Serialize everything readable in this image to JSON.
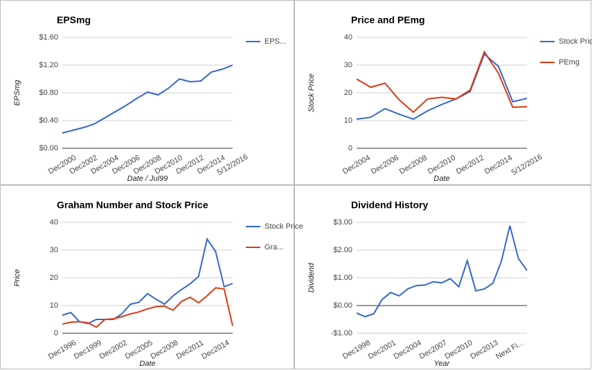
{
  "chart_data": [
    {
      "type": "line",
      "title": "EPSmg",
      "x_label": "Date / Jul99",
      "y_label": "EPSmg",
      "categories": [
        "Dec2000",
        null,
        "Dec2002",
        null,
        "Dec2004",
        null,
        "Dec2006",
        null,
        "Dec2008",
        null,
        "Dec2010",
        null,
        "Dec2012",
        null,
        "Dec2014",
        null,
        "5/12/2016"
      ],
      "series": [
        {
          "name": "EPS...",
          "color": "#3366cc",
          "values": [
            0.22,
            0.26,
            0.3,
            0.35,
            0.44,
            0.53,
            0.62,
            0.72,
            0.81,
            0.77,
            0.87,
            1.0,
            0.96,
            0.97,
            1.1,
            1.14,
            1.2
          ]
        }
      ],
      "ylim": [
        0,
        1.6
      ],
      "yticks": [
        {
          "value": 0,
          "label": "$0.00"
        },
        {
          "value": 0.4,
          "label": "$0.40"
        },
        {
          "value": 0.8,
          "label": "$0.80"
        },
        {
          "value": 1.2,
          "label": "$1.20"
        },
        {
          "value": 1.6,
          "label": "$1.60"
        }
      ],
      "grid": true,
      "legend": "right"
    },
    {
      "type": "line",
      "title": "Price and PEmg",
      "x_label": "Date",
      "y_label": "Stock Price",
      "categories": [
        "Dec2004",
        null,
        "Dec2006",
        null,
        "Dec2008",
        null,
        "Dec2010",
        null,
        "Dec2012",
        null,
        "Dec2014",
        null,
        "5/12/2016"
      ],
      "series": [
        {
          "name": "Stock Price",
          "color": "#3366cc",
          "values": [
            10.5,
            11.2,
            14.3,
            12.3,
            10.5,
            13.5,
            15.8,
            17.8,
            20.5,
            34,
            29.5,
            16.8,
            18
          ]
        },
        {
          "name": "PEmg",
          "color": "#dc3912",
          "values": [
            25,
            22,
            23.5,
            17.5,
            13,
            17.8,
            18.4,
            17.8,
            21,
            34.8,
            27,
            14.8,
            15
          ]
        }
      ],
      "ylim": [
        0,
        40
      ],
      "yticks": [
        0,
        10,
        20,
        30,
        40
      ],
      "grid": true,
      "legend": "right"
    },
    {
      "type": "line",
      "title": "Graham Number and Stock Price",
      "x_label": "Date",
      "y_label": "Price",
      "categories": [
        "Dec1996",
        null,
        null,
        "Dec1999",
        null,
        null,
        "Dec2002",
        null,
        null,
        "Dec2005",
        null,
        null,
        "Dec2008",
        null,
        null,
        "Dec2011",
        null,
        null,
        "Dec2014",
        null,
        null
      ],
      "series": [
        {
          "name": "Stock Price",
          "color": "#3366cc",
          "values": [
            6.5,
            7.5,
            4.2,
            3.5,
            5,
            5,
            5,
            7,
            10.5,
            11.2,
            14.3,
            12.3,
            10.5,
            13.5,
            15.8,
            17.8,
            20.5,
            34,
            29.5,
            16.8,
            18
          ]
        },
        {
          "name": "Gra...",
          "color": "#dc3912",
          "values": [
            3.3,
            4,
            4.2,
            3.8,
            2.2,
            5,
            5.2,
            6,
            7,
            7.7,
            8.8,
            9.6,
            9.8,
            8.3,
            11.5,
            13,
            11,
            13.5,
            16.4,
            16,
            2.7
          ]
        }
      ],
      "ylim": [
        0,
        40
      ],
      "yticks": [
        0,
        10,
        20,
        30,
        40
      ],
      "grid": true,
      "legend": "right"
    },
    {
      "type": "line",
      "title": "Dividend History",
      "x_label": "Year",
      "y_label": "Dividend",
      "categories": [
        "Dec1998",
        null,
        null,
        "Dec2001",
        null,
        null,
        "Dec2004",
        null,
        null,
        "Dec2007",
        null,
        null,
        "Dec2010",
        null,
        null,
        "Dec2013",
        null,
        null,
        "Next Fi...",
        null,
        null
      ],
      "series": [
        {
          "name": "Dividend",
          "color": "#3366cc",
          "values": [
            -0.27,
            -0.4,
            -0.3,
            0.22,
            0.47,
            0.35,
            0.6,
            0.72,
            0.74,
            0.86,
            0.82,
            0.97,
            0.68,
            1.62,
            0.53,
            0.6,
            0.8,
            1.6,
            2.88,
            1.7,
            1.27
          ]
        }
      ],
      "ylim": [
        -1,
        3
      ],
      "yticks": [
        {
          "value": -1,
          "label": "-$1.00"
        },
        {
          "value": 0,
          "label": "$0.00"
        },
        {
          "value": 1,
          "label": "$1.00"
        },
        {
          "value": 2,
          "label": "$2.00"
        },
        {
          "value": 3,
          "label": "$3.00"
        }
      ],
      "grid": true,
      "legend": "none"
    }
  ]
}
